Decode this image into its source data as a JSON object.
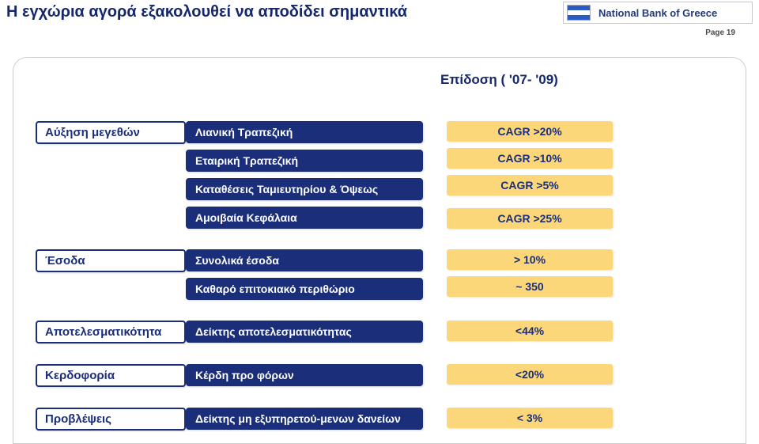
{
  "header": {
    "title": "Η εγχώρια αγορά εξακολουθεί να αποδίδει σημαντικά",
    "bank": "National Bank of Greece",
    "page": "Page 19"
  },
  "performance_header": "Επίδοση ( '07- '09)",
  "sections": {
    "growth": {
      "label": "Αύξηση μεγεθών",
      "items": [
        "Λιανική Τραπεζική",
        "Εταιρική Τραπεζική",
        "Καταθέσεις Ταμιευτηρίου & Όψεως",
        "Αμοιβαία Κεφάλαια"
      ],
      "values": [
        "CAGR >20%",
        "CAGR >10%",
        "CAGR >5%",
        "CAGR >25%"
      ]
    },
    "revenues": {
      "label": "Έσοδα",
      "items": [
        "Συνολικά έσοδα",
        "Καθαρό επιτοκιακό περιθώριο"
      ],
      "values": [
        "> 10%",
        "~ 350"
      ]
    },
    "efficiency": {
      "label": "Αποτελεσματικότητα",
      "items": [
        "Δείκτης αποτελεσματικότητας"
      ],
      "values": [
        "<44%"
      ]
    },
    "profit": {
      "label": "Κερδοφορία",
      "items": [
        "Κέρδη προ φόρων"
      ],
      "values": [
        "<20%"
      ]
    },
    "provisions": {
      "label": "Προβλέψεις",
      "items": [
        "Δείκτης μη εξυπηρετού-μενων δανείων"
      ],
      "values": [
        "< 3%"
      ]
    }
  }
}
